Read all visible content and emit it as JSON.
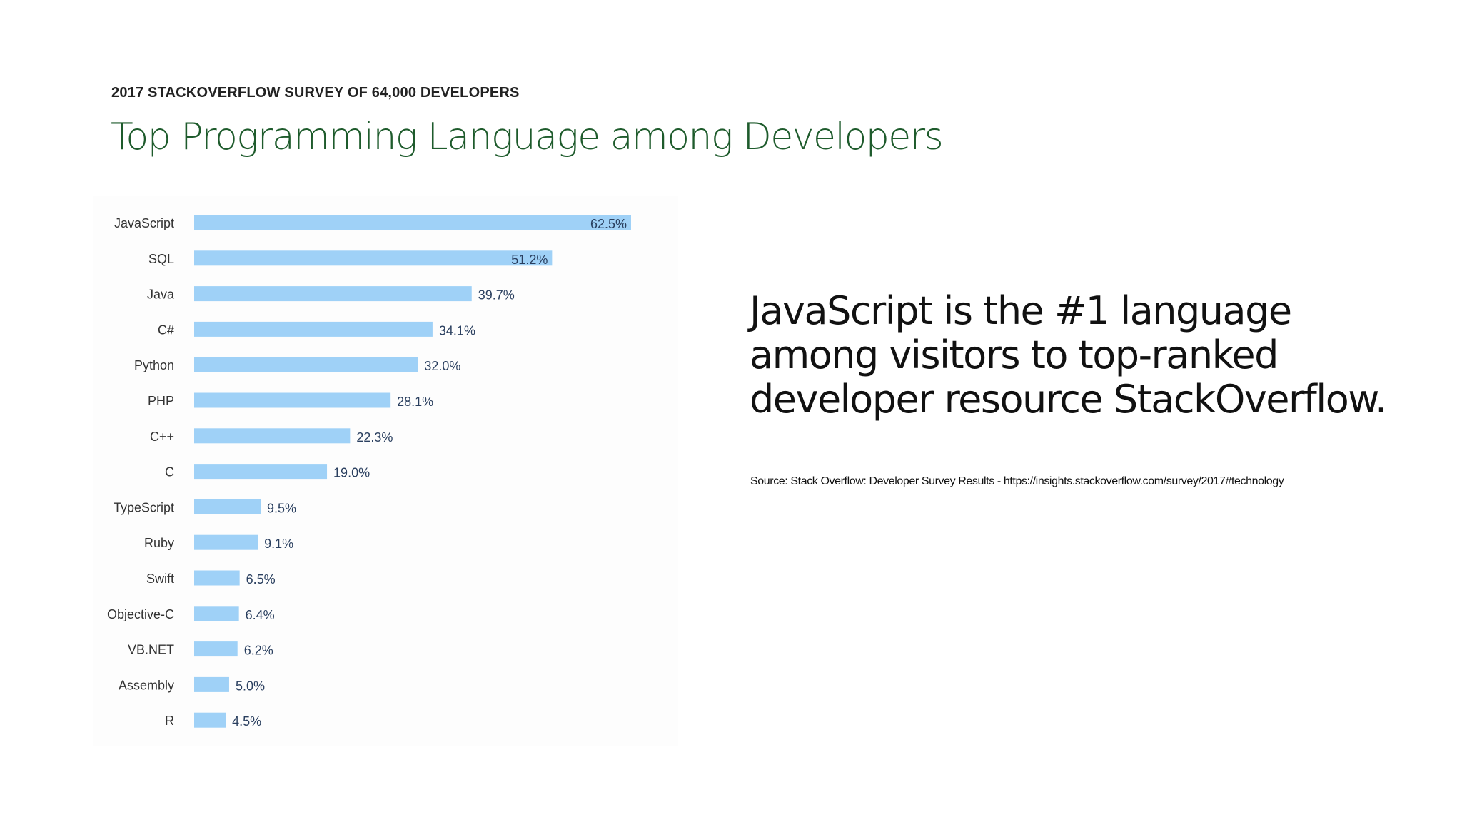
{
  "slide": {
    "kicker": "2017 STACKOVERFLOW SURVEY OF 64,000 DEVELOPERS",
    "title": "Top Programming Language among Developers",
    "callout": "JavaScript is the #1 language among visitors to top-ranked developer resource StackOverflow.",
    "source": "Source: Stack Overflow: Developer Survey Results - https://insights.stackoverflow.com/survey/2017#technology"
  },
  "colors": {
    "bar": "#9fd1f7",
    "title": "#1e5b2c",
    "label": "#333333",
    "value_label": "#2a3f5f"
  },
  "chart_data": {
    "type": "bar",
    "orientation": "horizontal",
    "title": "",
    "xlabel": "",
    "ylabel": "",
    "xlim": [
      0,
      62.5
    ],
    "grid": false,
    "categories": [
      "JavaScript",
      "SQL",
      "Java",
      "C#",
      "Python",
      "PHP",
      "C++",
      "C",
      "TypeScript",
      "Ruby",
      "Swift",
      "Objective-C",
      "VB.NET",
      "Assembly",
      "R"
    ],
    "values": [
      62.5,
      51.2,
      39.7,
      34.1,
      32.0,
      28.1,
      22.3,
      19.0,
      9.5,
      9.1,
      6.5,
      6.4,
      6.2,
      5.0,
      4.5
    ],
    "value_labels": [
      "62.5%",
      "51.2%",
      "39.7%",
      "34.1%",
      "32.0%",
      "28.1%",
      "22.3%",
      "19.0%",
      "9.5%",
      "9.1%",
      "6.5%",
      "6.4%",
      "6.2%",
      "5.0%",
      "4.5%"
    ]
  }
}
